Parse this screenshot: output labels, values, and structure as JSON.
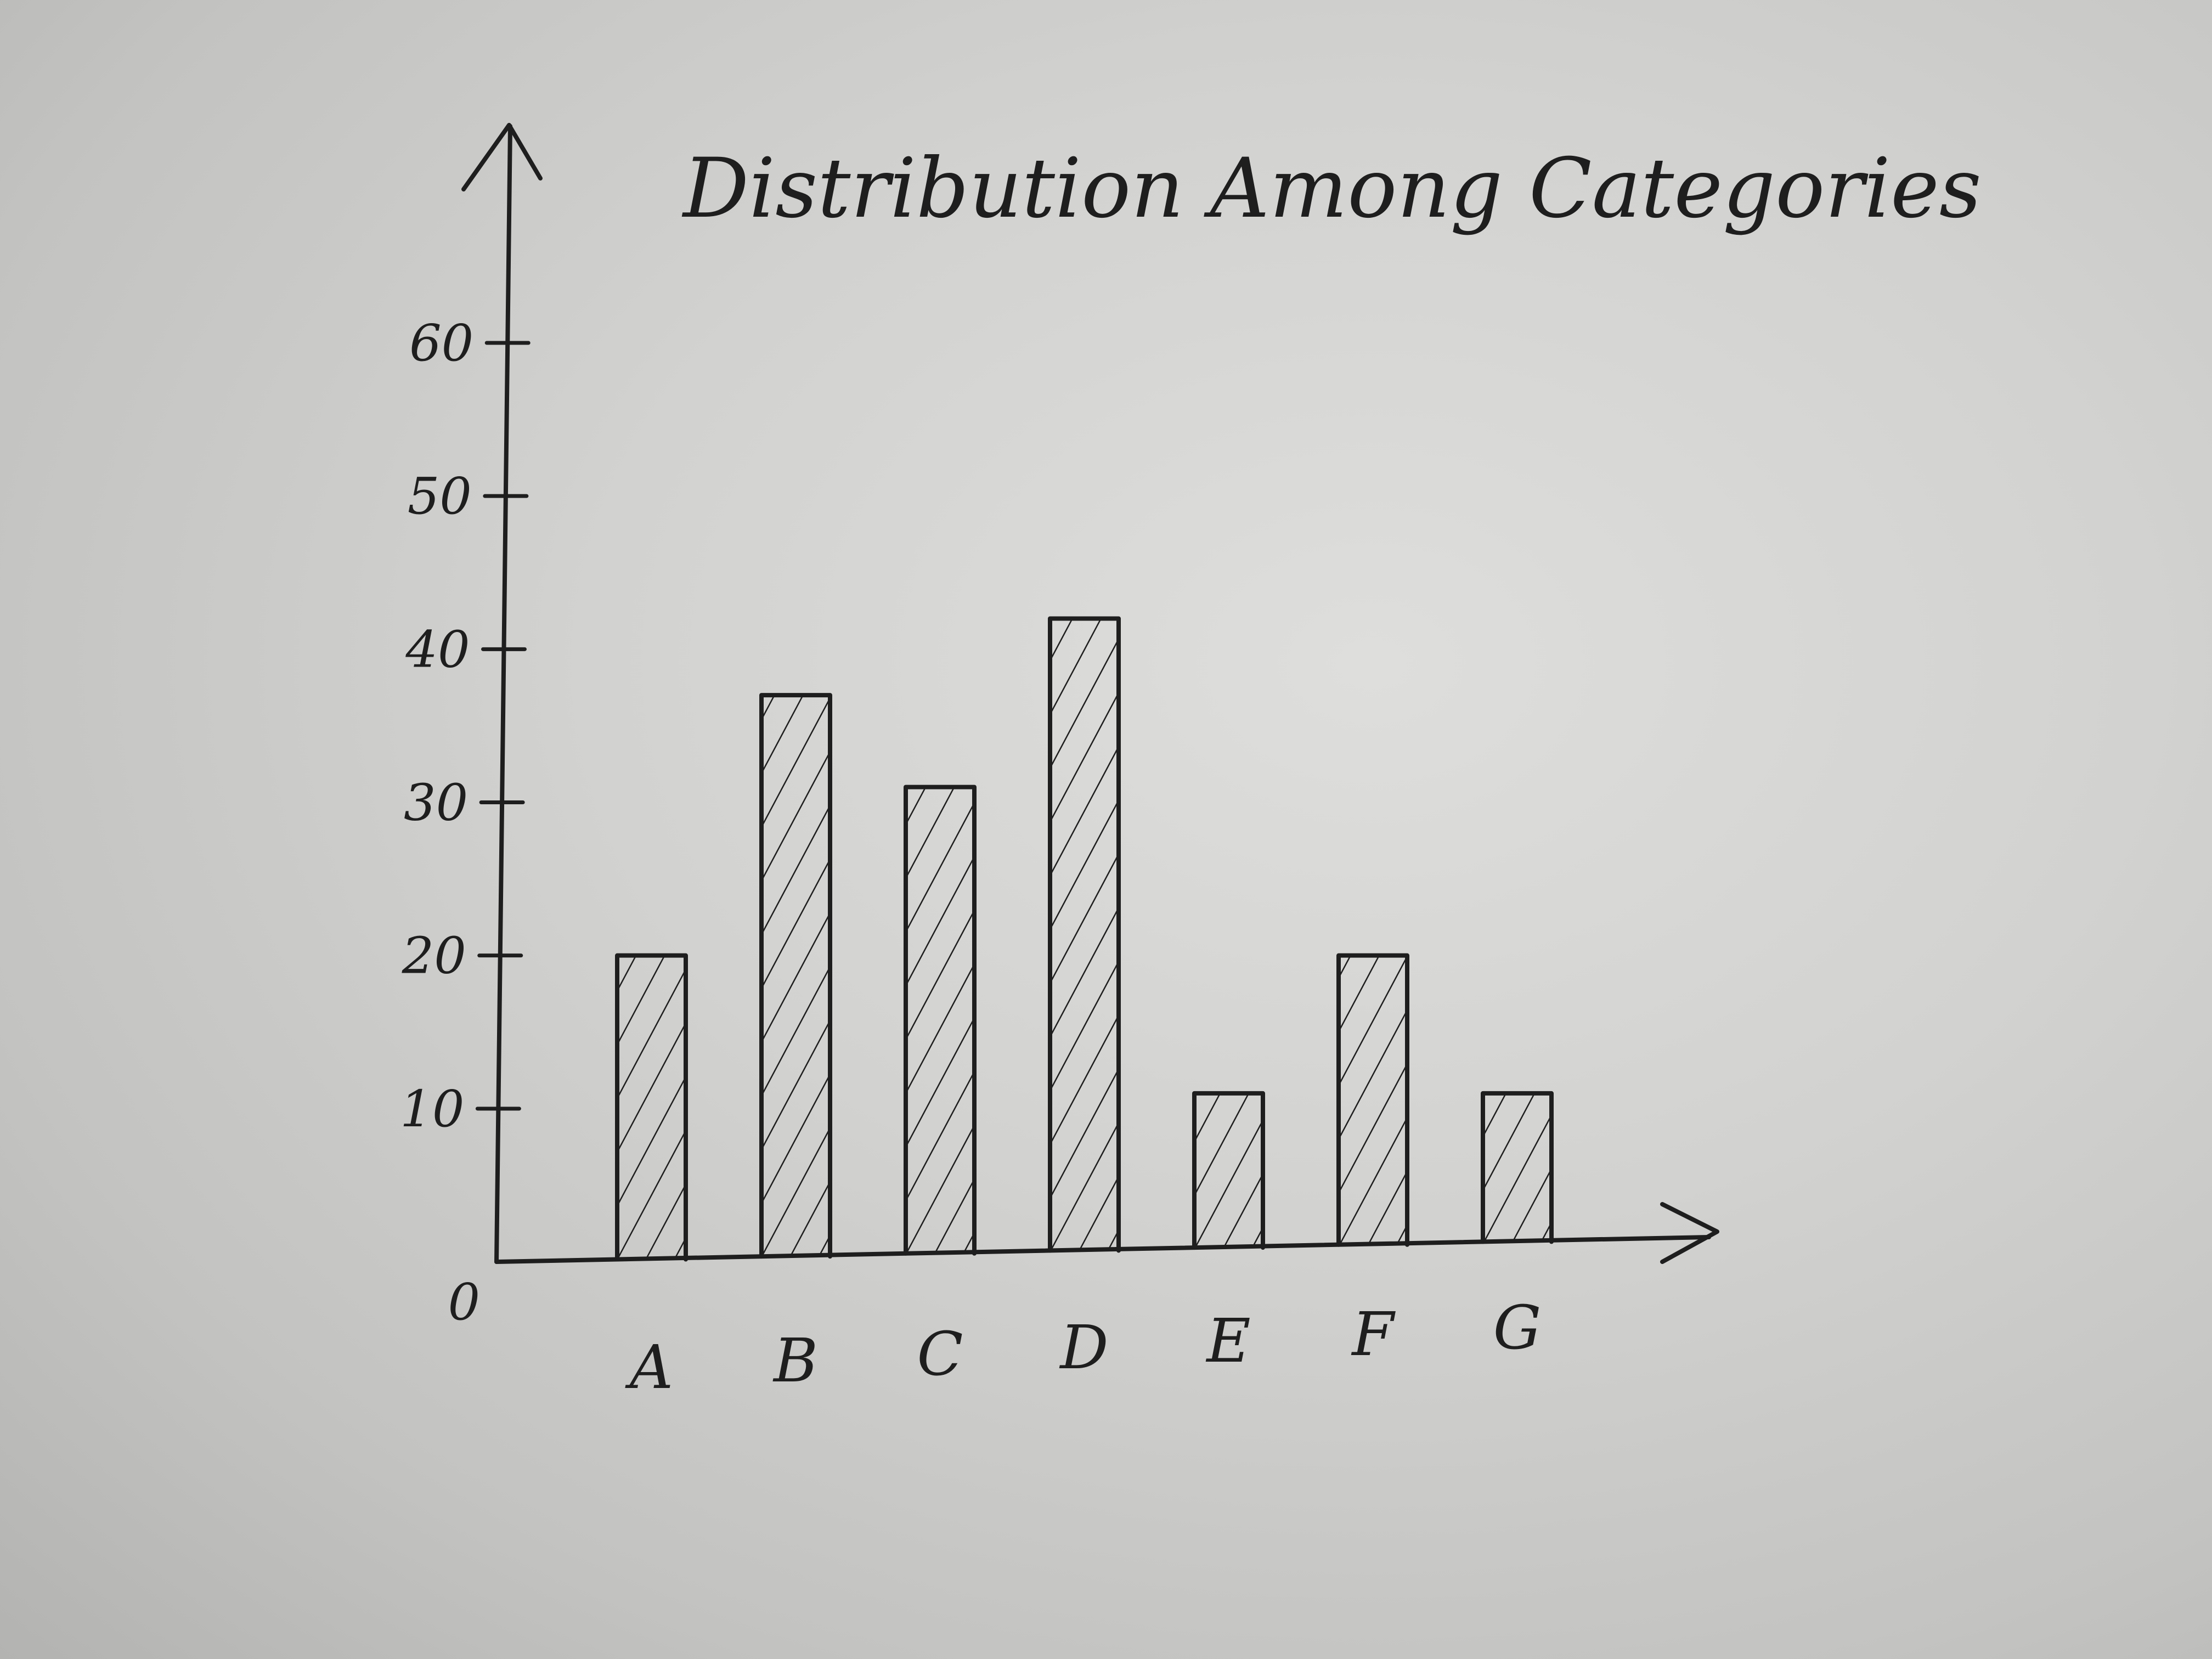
{
  "chart_data": {
    "type": "bar",
    "title": "Distribution Among Categories",
    "xlabel": "",
    "ylabel": "",
    "categories": [
      "A",
      "B",
      "C",
      "D",
      "E",
      "F",
      "G"
    ],
    "values": [
      20,
      37,
      31,
      42,
      11,
      20,
      11
    ],
    "ylim": [
      0,
      60
    ],
    "yticks": [
      "0",
      "10",
      "20",
      "30",
      "40",
      "50",
      "60"
    ],
    "grid": false,
    "style": "hand-drawn, hatched bars",
    "ink_color": "#1e1e1e",
    "paper_color": "#d6d6d4"
  }
}
